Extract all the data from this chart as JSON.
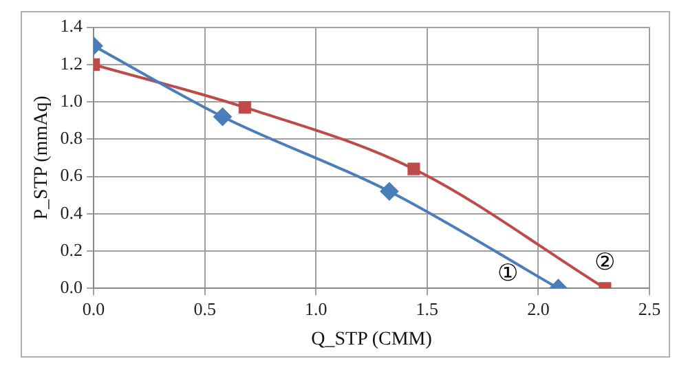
{
  "chart_data": {
    "type": "line",
    "xlabel": "Q_STP (CMM)",
    "ylabel": "P_STP (mmAq)",
    "series": [
      {
        "color": "#4a7ebb",
        "marker": "diamond",
        "x": [
          0,
          0.58,
          1.33,
          2.09
        ],
        "values": [
          1.3,
          0.92,
          0.52,
          0
        ]
      },
      {
        "color": "#be4b48",
        "marker": "square",
        "x": [
          0,
          0.68,
          1.44,
          2.3
        ],
        "values": [
          1.2,
          0.97,
          0.64,
          0
        ]
      }
    ],
    "xlim": [
      0,
      2.5
    ],
    "xticks": [
      {
        "value": 0,
        "label": "0.0"
      },
      0.5,
      {
        "value": 1,
        "label": "1.0"
      },
      1.5,
      {
        "value": 2,
        "label": "2.0"
      },
      2.5
    ],
    "ylim": [
      0,
      1.4
    ],
    "yticks": [
      {
        "value": 0,
        "label": "0.0"
      },
      0.2,
      0.4,
      0.6,
      0.8,
      {
        "value": 1,
        "label": "1.0"
      },
      1.2,
      1.4
    ],
    "grid": true,
    "legend": false,
    "annotations": [
      "①",
      "②"
    ]
  }
}
